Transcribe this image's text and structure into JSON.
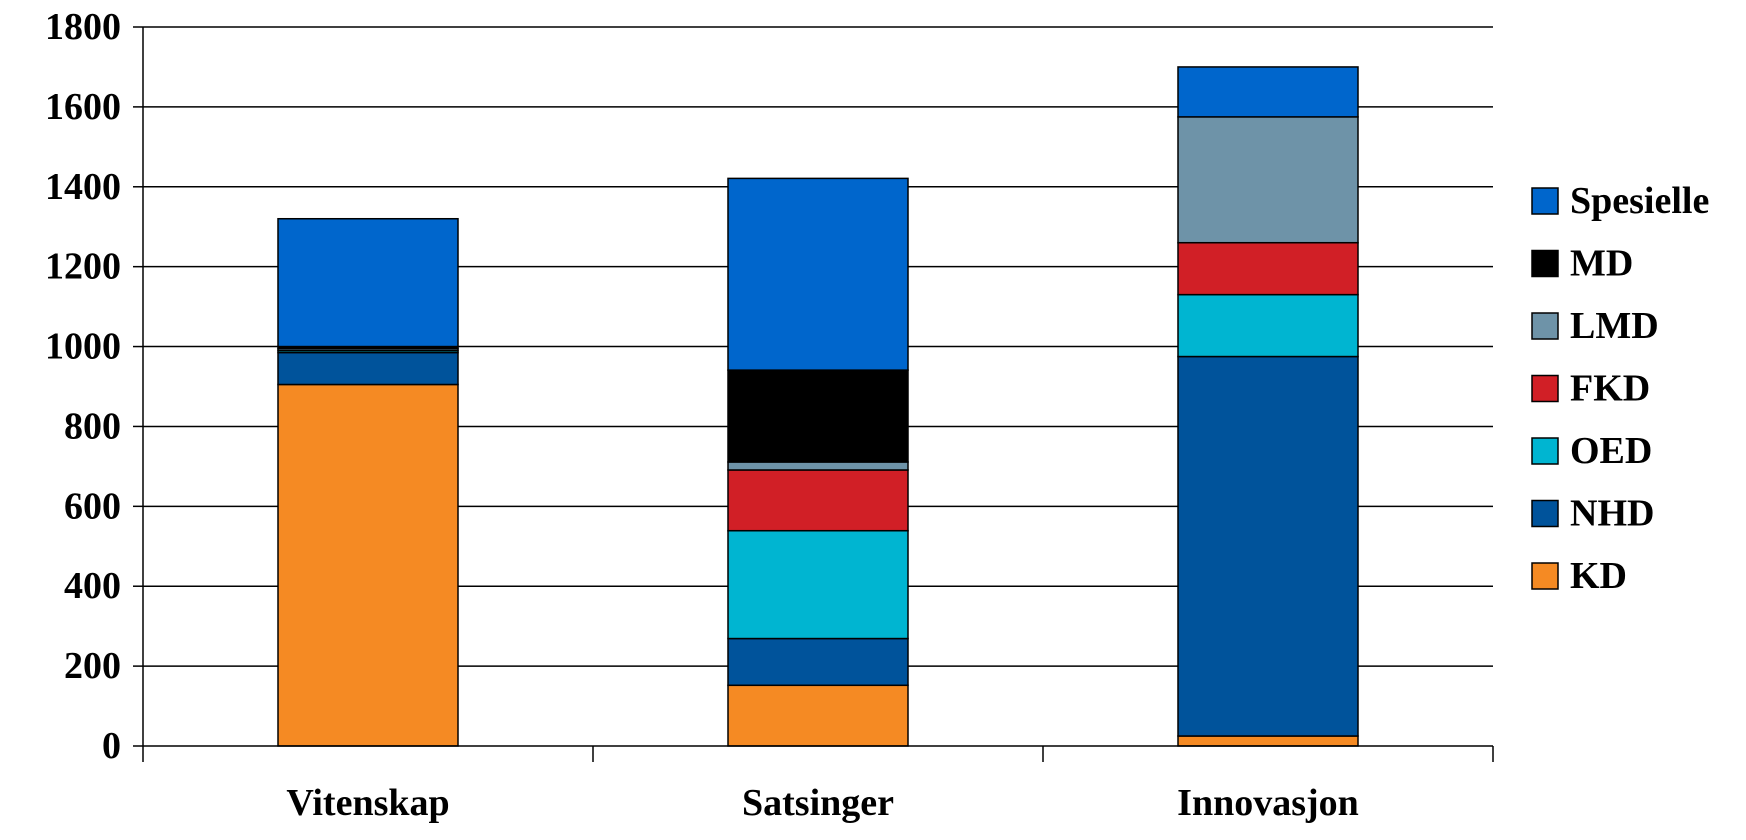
{
  "chart_data": {
    "type": "bar",
    "stacked": true,
    "categories": [
      "Vitenskap",
      "Satsinger",
      "Innovasjon"
    ],
    "ylim": [
      0,
      1800
    ],
    "yticks": [
      "0",
      "200",
      "400",
      "600",
      "800",
      "1000",
      "1200",
      "1400",
      "1600",
      "1800"
    ],
    "grid": true,
    "legend_position": "right",
    "series": [
      {
        "name": "KD",
        "color": "#F58A23",
        "values": [
          905,
          152,
          25
        ]
      },
      {
        "name": "NHD",
        "color": "#00539B",
        "values": [
          80,
          117,
          950
        ]
      },
      {
        "name": "OED",
        "color": "#00B5D1",
        "values": [
          5,
          270,
          155
        ]
      },
      {
        "name": "FKD",
        "color": "#D11F26",
        "values": [
          0,
          152,
          130
        ]
      },
      {
        "name": "LMD",
        "color": "#6E93A8",
        "values": [
          5,
          20,
          315
        ]
      },
      {
        "name": "MD",
        "color": "#000000",
        "values": [
          5,
          230,
          0
        ]
      },
      {
        "name": "Spesielle",
        "color": "#0066CC",
        "values": [
          320,
          480,
          125
        ]
      }
    ]
  }
}
